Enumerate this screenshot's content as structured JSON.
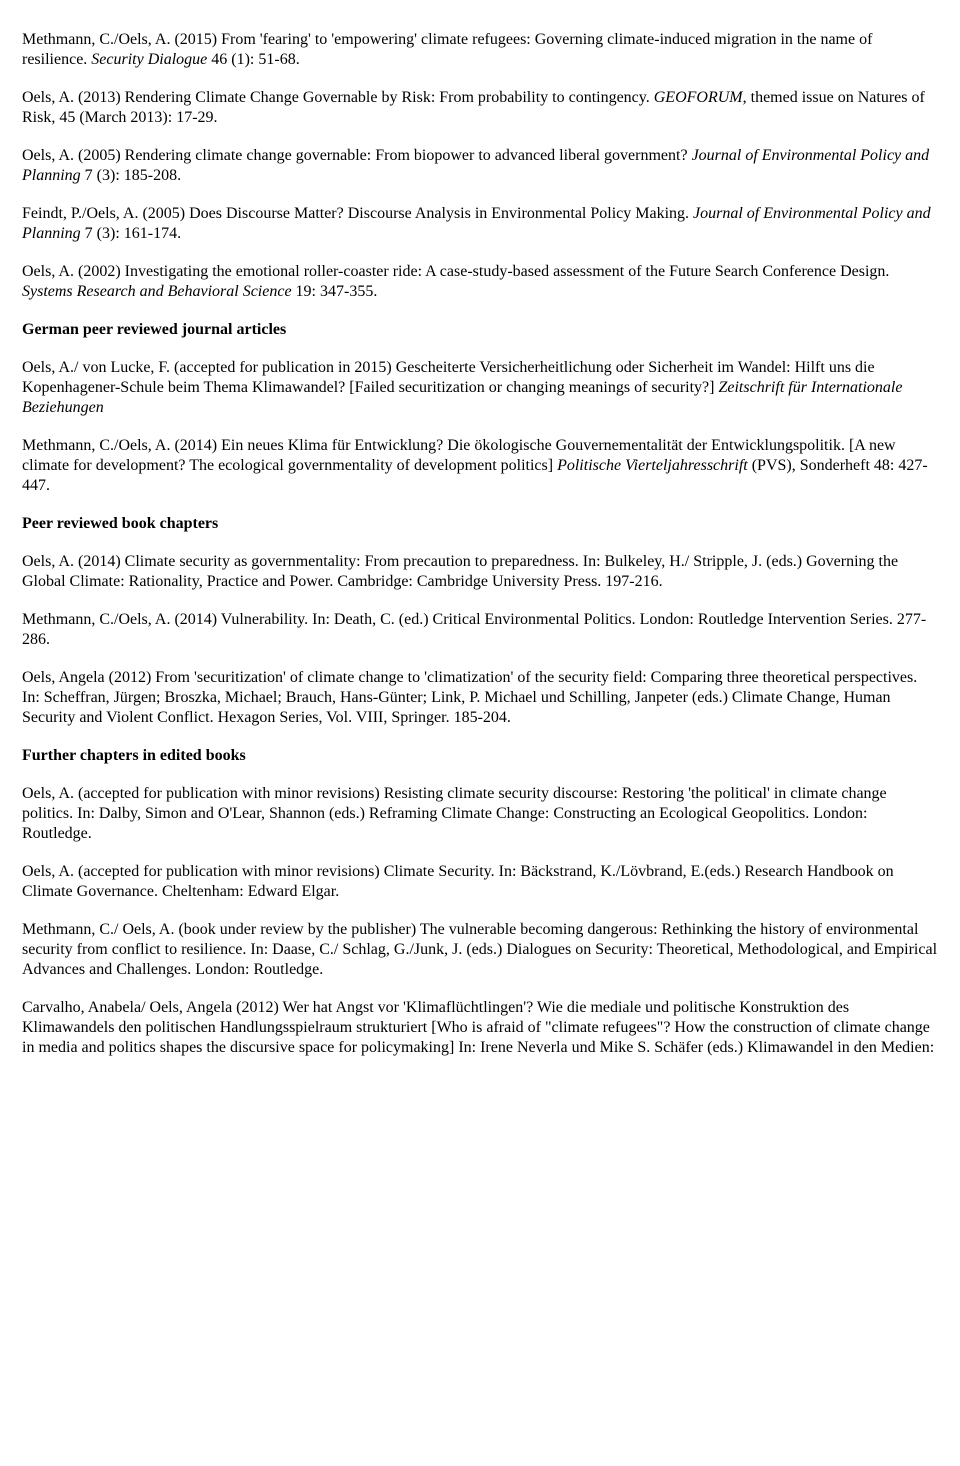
{
  "entries": [
    {
      "type": "p",
      "segments": [
        {
          "text": "Methmann, C./Oels, A. (2015) From 'fearing' to 'empowering' climate refugees: Governing climate-induced migration in the name of resilience. "
        },
        {
          "text": "Security Dialogue",
          "italic": true
        },
        {
          "text": " 46 (1): 51-68."
        }
      ]
    },
    {
      "type": "p",
      "segments": [
        {
          "text": "Oels, A. (2013) Rendering Climate Change Governable by Risk: From probability to contingency. "
        },
        {
          "text": "GEOFORUM",
          "italic": true
        },
        {
          "text": ", themed issue on Natures of Risk, 45 (March 2013): 17-29."
        }
      ]
    },
    {
      "type": "p",
      "segments": [
        {
          "text": "Oels, A. (2005) Rendering climate change governable: From biopower to advanced liberal government? "
        },
        {
          "text": "Journal of Environmental Policy and Planning",
          "italic": true
        },
        {
          "text": " 7 (3): 185-208."
        }
      ]
    },
    {
      "type": "p",
      "segments": [
        {
          "text": "Feindt, P./Oels, A. (2005) Does Discourse Matter? Discourse Analysis in Environmental Policy Making. "
        },
        {
          "text": "Journal of Environmental Policy and Planning",
          "italic": true
        },
        {
          "text": " 7 (3): 161-174."
        }
      ]
    },
    {
      "type": "p",
      "segments": [
        {
          "text": "Oels, A. (2002) Investigating the emotional roller-coaster ride: A case-study-based assessment of the Future Search Conference Design. "
        },
        {
          "text": "Systems Research and Behavioral Science",
          "italic": true
        },
        {
          "text": " 19: 347-355."
        }
      ]
    },
    {
      "type": "h",
      "text": "German peer reviewed journal articles"
    },
    {
      "type": "p",
      "segments": [
        {
          "text": "Oels, A./ von Lucke, F. (accepted for publication in 2015) Gescheiterte Versicherheitlichung oder Sicherheit im Wandel: Hilft uns die Kopenhagener-Schule beim Thema Klimawandel? [Failed securitization or changing meanings of security?] "
        },
        {
          "text": "Zeitschrift für Internationale Beziehungen",
          "italic": true
        }
      ]
    },
    {
      "type": "p",
      "segments": [
        {
          "text": "Methmann, C./Oels, A. (2014) Ein neues Klima für Entwicklung? Die ökologische Gouvernementalität der Entwicklungspolitik. [A new climate for development? The ecological governmentality of development politics] "
        },
        {
          "text": "Politische Vierteljahresschrift",
          "italic": true
        },
        {
          "text": " (PVS), Sonderheft 48: 427-447."
        }
      ]
    },
    {
      "type": "h",
      "text": "Peer reviewed book chapters"
    },
    {
      "type": "p",
      "segments": [
        {
          "text": "Oels, A. (2014) Climate security as governmentality: From precaution to preparedness. In: Bulkeley, H./ Stripple, J. (eds.) Governing the Global Climate: Rationality, Practice and Power. Cambridge: Cambridge University Press. 197-216."
        }
      ]
    },
    {
      "type": "p",
      "segments": [
        {
          "text": "Methmann, C./Oels, A. (2014) Vulnerability. In: Death, C. (ed.) Critical Environmental Politics. London: Routledge Intervention Series. 277-286."
        }
      ]
    },
    {
      "type": "p",
      "segments": [
        {
          "text": "Oels, Angela (2012) From 'securitization' of climate change to 'climatization' of the security field: Comparing three theoretical perspectives. In: Scheffran, Jürgen; Broszka, Michael; Brauch, Hans-Günter; Link, P. Michael und Schilling, Janpeter (eds.) Climate Change, Human Security and Violent Conflict. Hexagon Series, Vol. VIII, Springer. 185-204."
        }
      ]
    },
    {
      "type": "h",
      "text": "Further chapters in edited books"
    },
    {
      "type": "p",
      "segments": [
        {
          "text": "Oels, A. (accepted for publication with minor revisions) Resisting climate security discourse: Restoring 'the political' in climate change politics. In: Dalby, Simon and O'Lear, Shannon (eds.) Reframing Climate Change: Constructing an Ecological Geopolitics. London: Routledge."
        }
      ]
    },
    {
      "type": "p",
      "segments": [
        {
          "text": "Oels, A. (accepted for publication with minor revisions) Climate Security. In: Bäckstrand, K./Lövbrand, E.(eds.) Research Handbook on Climate Governance. Cheltenham: Edward Elgar."
        }
      ]
    },
    {
      "type": "p",
      "segments": [
        {
          "text": "Methmann, C./ Oels, A. (book under review by the publisher) The vulnerable becoming dangerous: Rethinking the history of environmental security from conflict to resilience. In: Daase, C./ Schlag, G./Junk, J. (eds.) Dialogues on Security: Theoretical, Methodological, and Empirical Advances and Challenges. London: Routledge."
        }
      ]
    },
    {
      "type": "p",
      "segments": [
        {
          "text": "Carvalho, Anabela/ Oels, Angela (2012) Wer hat Angst vor 'Klimaflüchtlingen'? Wie die mediale und politische Konstruktion des Klimawandels den politischen Handlungsspielraum strukturiert [Who is afraid of \"climate refugees\"? How the construction of climate change in media and politics shapes the discursive space for policymaking] In: Irene Neverla und Mike S. Schäfer (eds.) Klimawandel in den Medien:"
        }
      ]
    }
  ]
}
